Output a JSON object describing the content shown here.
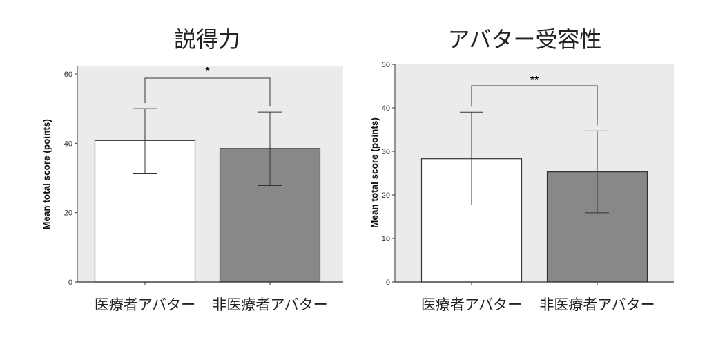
{
  "chart_data": [
    {
      "type": "bar",
      "title": "説得力",
      "ylabel": "Mean total score (points)",
      "xlabel": "",
      "categories": [
        "医療者アバター",
        "非医療者アバター"
      ],
      "values": [
        40.8,
        38.5
      ],
      "error_bars": [
        [
          31.2,
          50.0
        ],
        [
          27.8,
          49.0
        ]
      ],
      "bar_colors": [
        "#ffffff",
        "#888888"
      ],
      "ylim": [
        0,
        60
      ],
      "yticks": [
        "0",
        "20",
        "40",
        "60"
      ],
      "significance": "*",
      "background": "#ebebeb",
      "grid": false
    },
    {
      "type": "bar",
      "title": "アバター受容性",
      "ylabel": "Mean total score (points)",
      "xlabel": "",
      "categories": [
        "医療者アバター",
        "非医療者アバター"
      ],
      "values": [
        28.3,
        25.3
      ],
      "error_bars": [
        [
          17.7,
          39.0
        ],
        [
          15.9,
          34.7
        ]
      ],
      "bar_colors": [
        "#ffffff",
        "#888888"
      ],
      "ylim": [
        0,
        50
      ],
      "yticks": [
        "0",
        "10",
        "20",
        "30",
        "40",
        "50"
      ],
      "significance": "**",
      "background": "#ebebeb",
      "grid": false
    }
  ]
}
